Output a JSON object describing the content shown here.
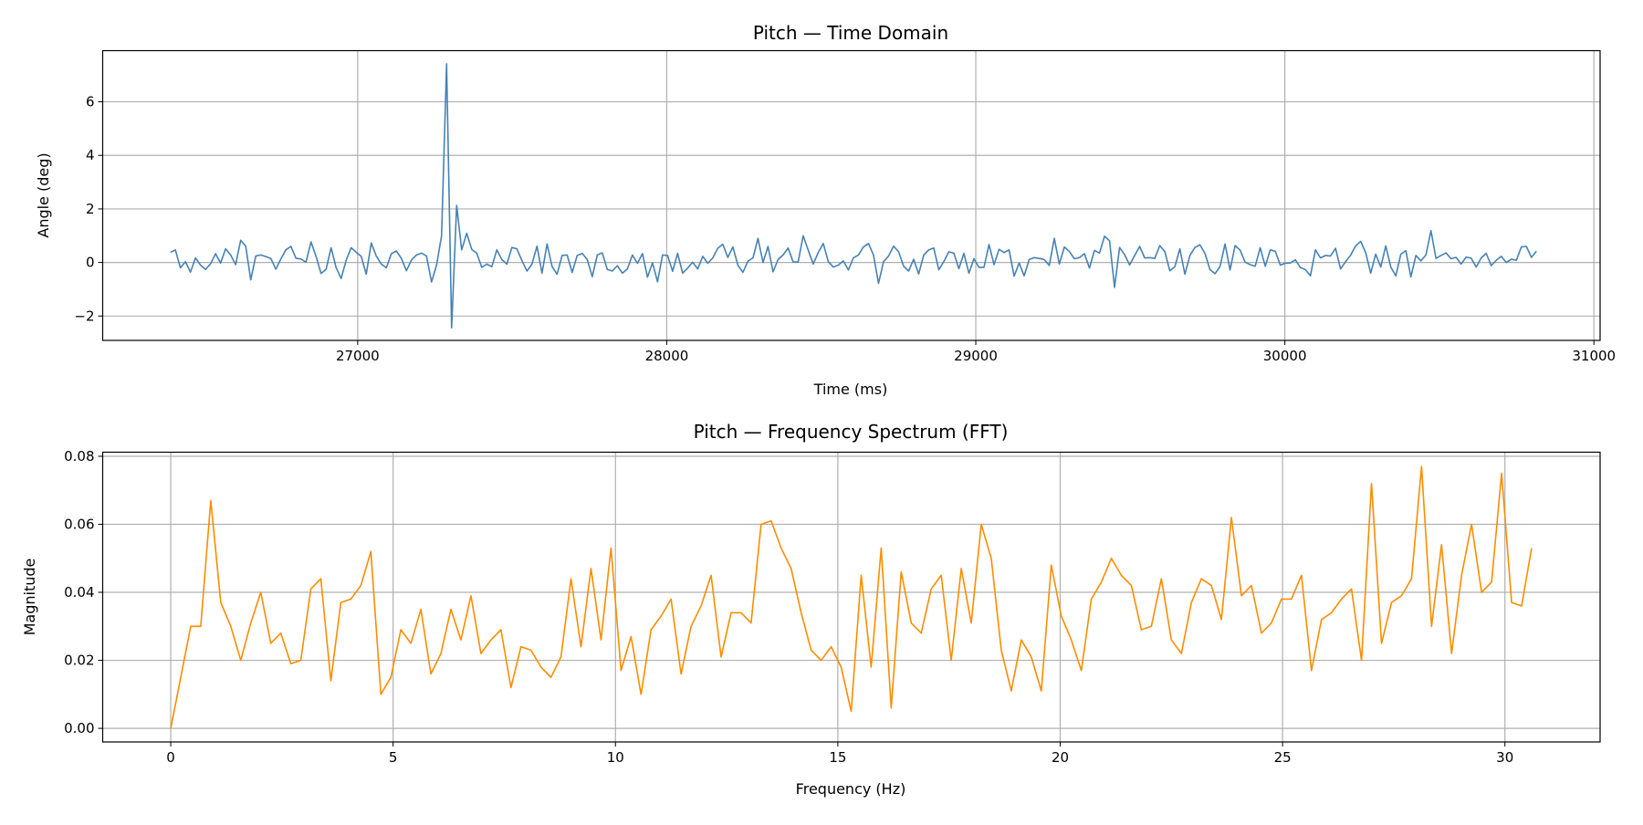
{
  "chart_data": [
    {
      "type": "line",
      "title": "Pitch — Time Domain",
      "xlabel": "Time (ms)",
      "ylabel": "Angle (deg)",
      "xlim": [
        26175,
        31020
      ],
      "ylim": [
        -2.91,
        7.91
      ],
      "x_range": [
        26394,
        30814
      ],
      "xticks": [
        27000,
        28000,
        29000,
        30000,
        31000
      ],
      "xtick_labels": [
        "27000",
        "28000",
        "29000",
        "30000",
        "31000"
      ],
      "yticks": [
        -2,
        0,
        2,
        4,
        6
      ],
      "ytick_labels": [
        "−2",
        "0",
        "2",
        "4",
        "6"
      ],
      "grid": true,
      "color": "#4682b4",
      "values": [
        0.38,
        0.47,
        -0.2,
        0.03,
        -0.36,
        0.17,
        -0.1,
        -0.26,
        -0.05,
        0.33,
        -0.02,
        0.51,
        0.28,
        -0.08,
        0.83,
        0.61,
        -0.65,
        0.24,
        0.28,
        0.22,
        0.15,
        -0.25,
        0.13,
        0.47,
        0.6,
        0.16,
        0.13,
        0.01,
        0.77,
        0.23,
        -0.41,
        -0.26,
        0.55,
        -0.19,
        -0.6,
        0.08,
        0.55,
        0.38,
        0.23,
        -0.44,
        0.73,
        0.24,
        -0.06,
        -0.2,
        0.33,
        0.43,
        0.15,
        -0.31,
        0.09,
        0.28,
        0.35,
        0.24,
        -0.73,
        -0.1,
        1.0,
        7.42,
        -2.44,
        2.13,
        0.47,
        1.09,
        0.49,
        0.35,
        -0.18,
        -0.06,
        -0.16,
        0.47,
        0.11,
        -0.06,
        0.56,
        0.51,
        0.07,
        -0.32,
        -0.06,
        0.61,
        -0.4,
        0.69,
        -0.15,
        -0.44,
        0.26,
        0.28,
        -0.37,
        0.26,
        0.34,
        0.11,
        -0.53,
        0.28,
        0.36,
        -0.26,
        -0.32,
        -0.12,
        -0.4,
        -0.24,
        0.28,
        -0.03,
        0.33,
        -0.55,
        -0.01,
        -0.72,
        0.28,
        0.26,
        -0.33,
        0.34,
        -0.4,
        -0.21,
        0.01,
        -0.24,
        0.23,
        -0.03,
        0.17,
        0.53,
        0.68,
        0.19,
        0.58,
        -0.1,
        -0.37,
        0.05,
        0.17,
        0.9,
        0,
        0.6,
        -0.35,
        0.11,
        0.28,
        0.54,
        0.02,
        0.02,
        1.0,
        0.46,
        -0.06,
        0.37,
        0.71,
        0.03,
        -0.17,
        -0.1,
        0.06,
        -0.28,
        0.17,
        0.28,
        0.58,
        0.71,
        0.28,
        -0.78,
        0.03,
        0.24,
        0.61,
        0.4,
        -0.14,
        -0.32,
        0.12,
        -0.43,
        0.28,
        0.47,
        0.54,
        -0.27,
        0.03,
        0.4,
        0.35,
        -0.23,
        0.34,
        -0.4,
        0.14,
        -0.18,
        -0.18,
        0.67,
        -0.08,
        0.49,
        0.37,
        0.47,
        -0.51,
        -0.02,
        -0.5,
        0.11,
        0.18,
        0.15,
        0.11,
        -0.11,
        0.9,
        -0.06,
        0.58,
        0.41,
        0.14,
        0.18,
        0.33,
        -0.21,
        0.45,
        0.35,
        0.98,
        0.81,
        -0.93,
        0.56,
        0.29,
        -0.09,
        0.26,
        0.6,
        0.17,
        0.18,
        0.15,
        0.63,
        0.41,
        -0.31,
        -0.16,
        0.51,
        -0.44,
        0.26,
        0.56,
        0.66,
        0.34,
        -0.27,
        -0.42,
        -0.15,
        0.69,
        -0.28,
        0.63,
        0.46,
        0.01,
        -0.08,
        -0.14,
        0.55,
        -0.14,
        0.47,
        0.42,
        -0.1,
        -0.03,
        -0.02,
        0.1,
        -0.19,
        -0.27,
        -0.5,
        0.47,
        0.17,
        0.26,
        0.24,
        0.53,
        -0.24,
        0.03,
        0.27,
        0.62,
        0.79,
        0.37,
        -0.4,
        0.31,
        -0.17,
        0.62,
        -0.17,
        -0.5,
        0.31,
        0.44,
        -0.54,
        0.26,
        0.06,
        0.28,
        1.19,
        0.15,
        0.26,
        0.36,
        0.14,
        0.19,
        -0.06,
        0.2,
        0.16,
        -0.17,
        0.17,
        0.34,
        -0.12,
        0.08,
        0.23,
        0,
        0.12,
        0.08,
        0.58,
        0.6,
        0.19,
        0.42
      ]
    },
    {
      "type": "line",
      "title": "Pitch — Frequency Spectrum (FFT)",
      "xlabel": "Frequency (Hz)",
      "ylabel": "Magnitude",
      "xlim": [
        -1.53,
        32.14
      ],
      "ylim": [
        -0.004,
        0.0812
      ],
      "x_range": [
        0,
        30.6
      ],
      "xticks": [
        0,
        5,
        10,
        15,
        20,
        25,
        30
      ],
      "xtick_labels": [
        "0",
        "5",
        "10",
        "15",
        "20",
        "25",
        "30"
      ],
      "yticks": [
        0,
        0.02,
        0.04,
        0.06,
        0.08
      ],
      "ytick_labels": [
        "0.00",
        "0.02",
        "0.04",
        "0.06",
        "0.08"
      ],
      "grid": true,
      "color": "#ff8c00",
      "values": [
        0,
        0.015,
        0.03,
        0.03,
        0.067,
        0.037,
        0.03,
        0.02,
        0.031,
        0.04,
        0.025,
        0.028,
        0.019,
        0.02,
        0.041,
        0.044,
        0.014,
        0.037,
        0.038,
        0.042,
        0.052,
        0.01,
        0.015,
        0.029,
        0.025,
        0.035,
        0.016,
        0.022,
        0.035,
        0.026,
        0.039,
        0.022,
        0.026,
        0.029,
        0.012,
        0.024,
        0.023,
        0.018,
        0.015,
        0.021,
        0.044,
        0.024,
        0.047,
        0.026,
        0.053,
        0.017,
        0.027,
        0.01,
        0.029,
        0.033,
        0.038,
        0.016,
        0.03,
        0.036,
        0.045,
        0.021,
        0.034,
        0.034,
        0.031,
        0.06,
        0.061,
        0.053,
        0.047,
        0.034,
        0.023,
        0.02,
        0.024,
        0.018,
        0.005,
        0.045,
        0.018,
        0.053,
        0.006,
        0.046,
        0.031,
        0.028,
        0.041,
        0.045,
        0.02,
        0.047,
        0.031,
        0.06,
        0.05,
        0.023,
        0.011,
        0.026,
        0.021,
        0.011,
        0.048,
        0.033,
        0.026,
        0.017,
        0.038,
        0.043,
        0.05,
        0.045,
        0.042,
        0.029,
        0.03,
        0.044,
        0.026,
        0.022,
        0.037,
        0.044,
        0.042,
        0.032,
        0.062,
        0.039,
        0.042,
        0.028,
        0.031,
        0.038,
        0.038,
        0.045,
        0.017,
        0.032,
        0.034,
        0.038,
        0.041,
        0.02,
        0.072,
        0.025,
        0.037,
        0.039,
        0.044,
        0.077,
        0.03,
        0.054,
        0.022,
        0.045,
        0.06,
        0.04,
        0.043,
        0.075,
        0.037,
        0.036,
        0.053
      ]
    }
  ]
}
